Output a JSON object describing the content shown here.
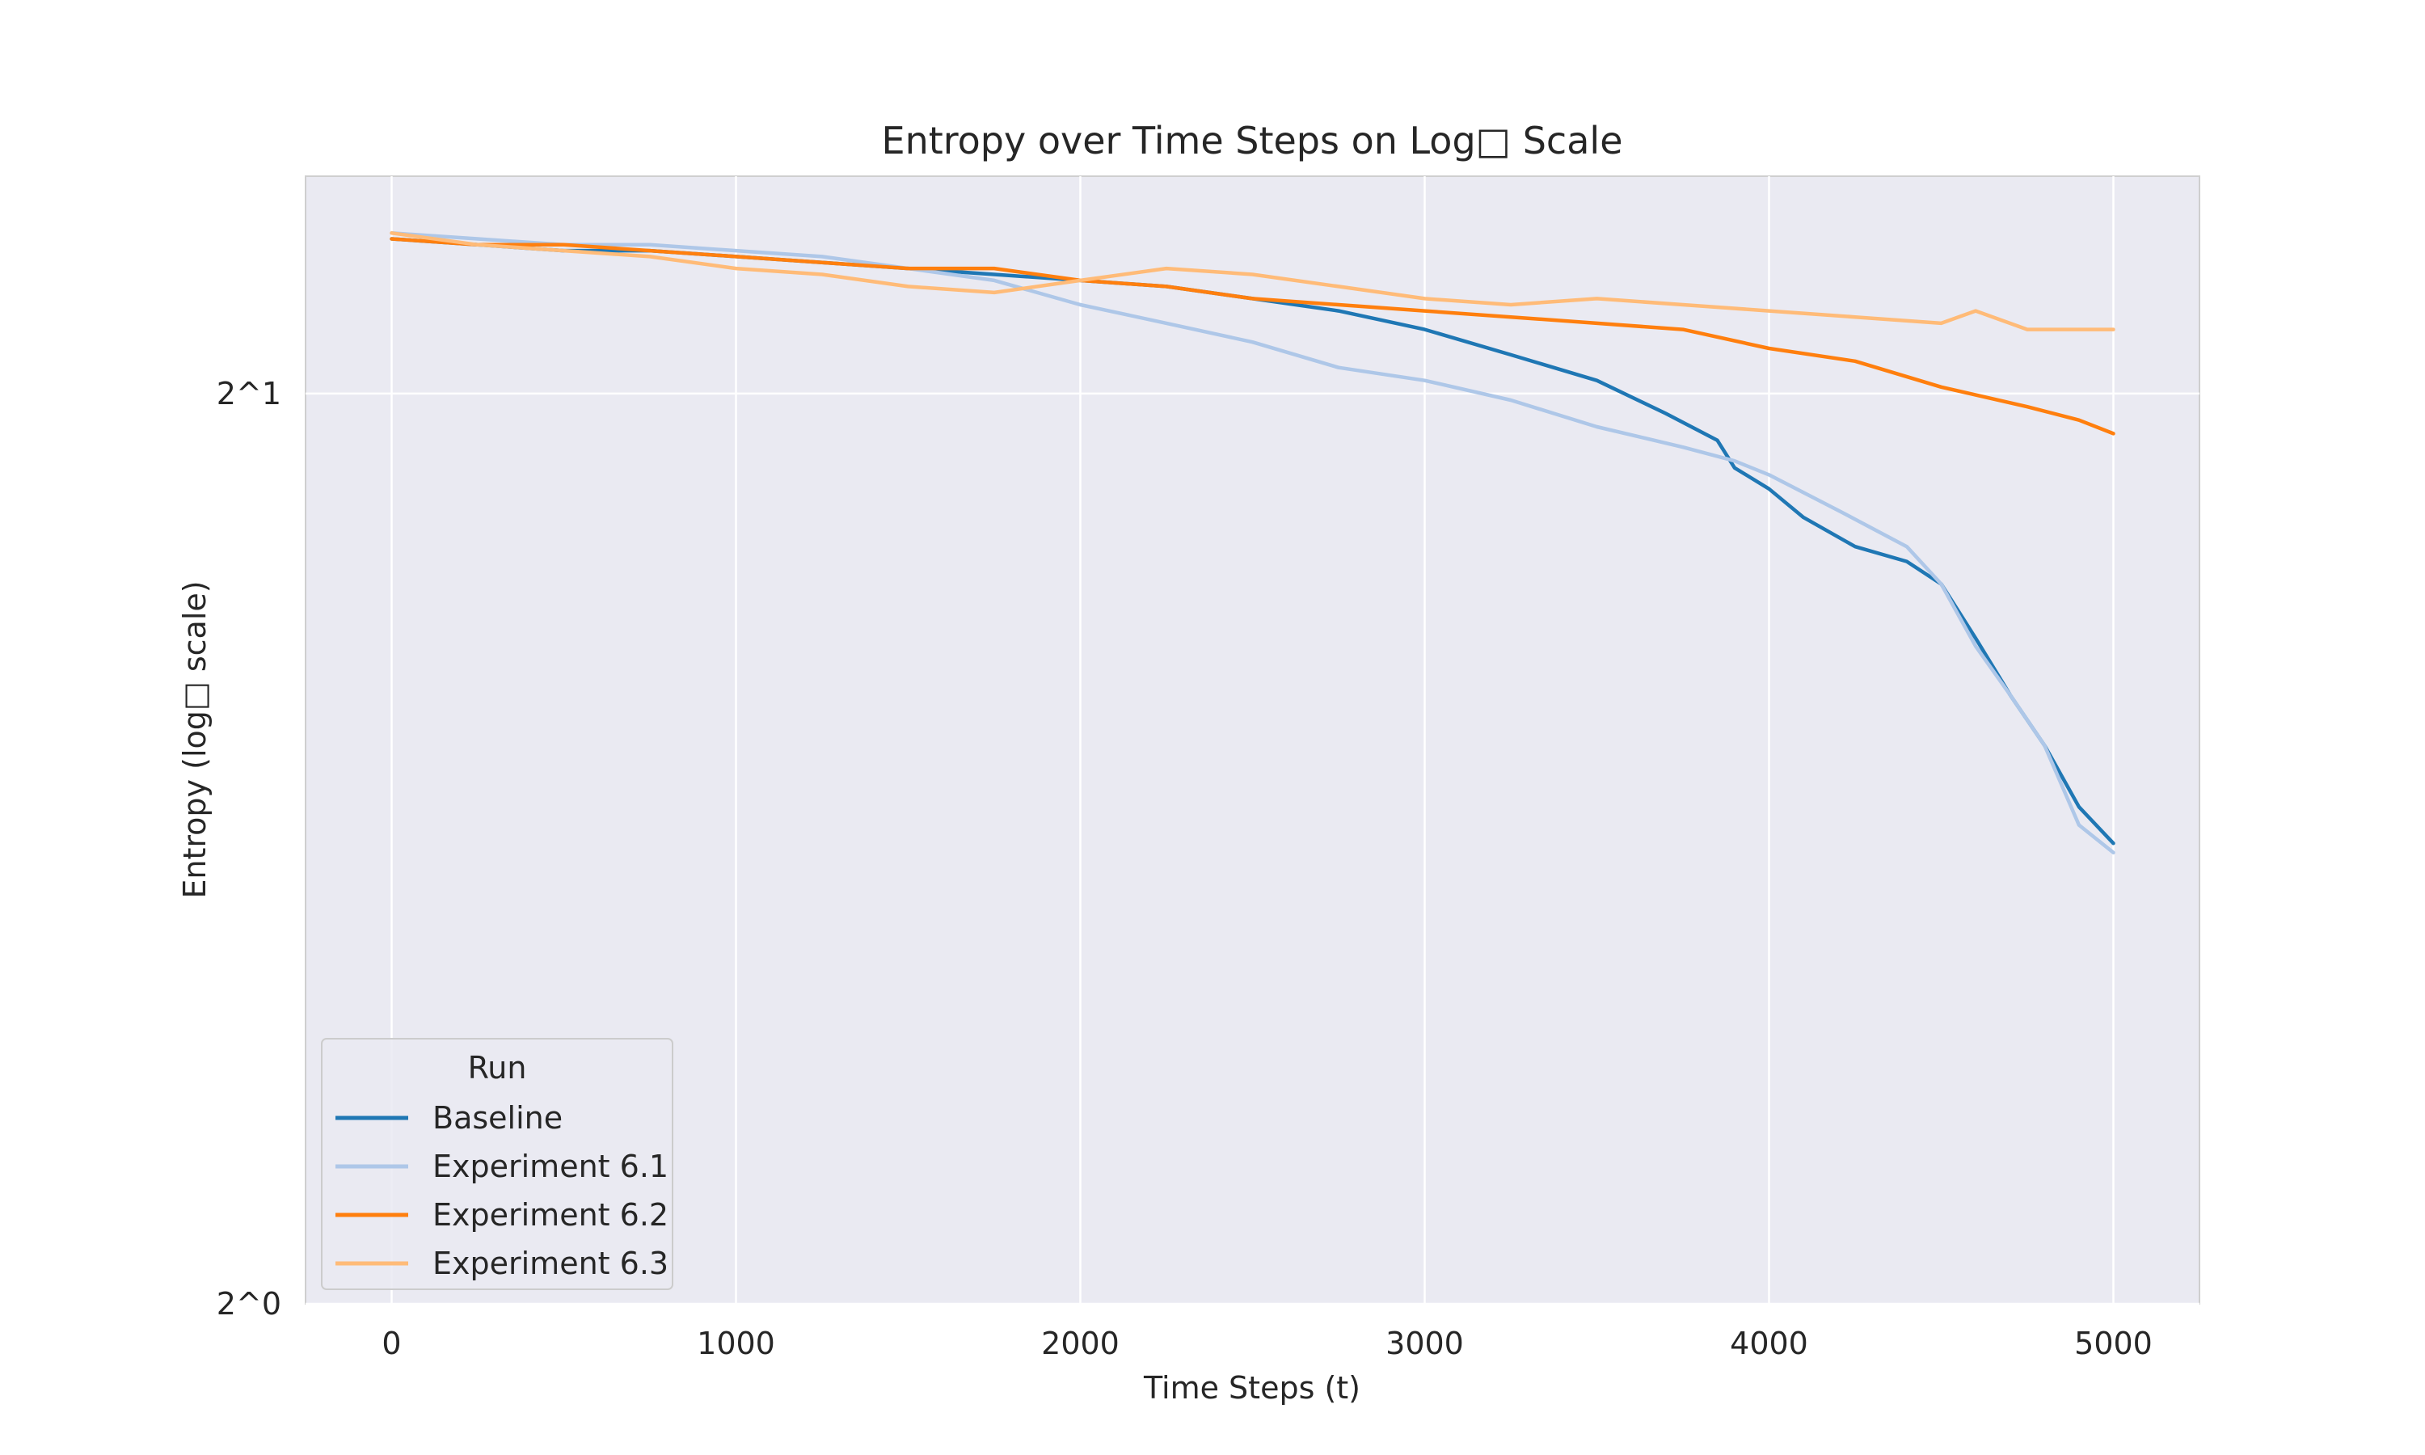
{
  "chart_data": {
    "type": "line",
    "title": "Entropy over Time Steps on Log□ Scale",
    "xlabel": "Time Steps (t)",
    "ylabel": "Entropy (log□ scale)",
    "xlim": [
      -250,
      5250
    ],
    "ylim": [
      1.0,
      2.36
    ],
    "yscale": "log2",
    "grid": true,
    "x_ticks": [
      0,
      1000,
      2000,
      3000,
      4000,
      5000
    ],
    "x_tick_labels": [
      "0",
      "1000",
      "2000",
      "3000",
      "4000",
      "5000"
    ],
    "y_ticks": [
      1,
      2
    ],
    "y_tick_labels": [
      "2^0",
      "2^1"
    ],
    "legend": {
      "title": "Run",
      "position": "lower-left"
    },
    "colors": {
      "plot_bg": "#eaeaf2",
      "grid": "#ffffff",
      "Baseline": "#1f77b4",
      "Experiment 6.1": "#aec7e8",
      "Experiment 6.2": "#ff7f0e",
      "Experiment 6.3": "#ffbb78"
    },
    "series": [
      {
        "name": "Baseline",
        "color": "#1f77b4",
        "x": [
          0,
          250,
          500,
          750,
          1000,
          1250,
          1500,
          1750,
          2000,
          2250,
          2500,
          2750,
          3000,
          3250,
          3500,
          3700,
          3850,
          3900,
          4000,
          4100,
          4250,
          4400,
          4500,
          4600,
          4700,
          4800,
          4900,
          5000
        ],
        "y": [
          2.25,
          2.24,
          2.23,
          2.23,
          2.22,
          2.21,
          2.2,
          2.19,
          2.18,
          2.17,
          2.15,
          2.13,
          2.1,
          2.06,
          2.02,
          1.97,
          1.93,
          1.89,
          1.86,
          1.82,
          1.78,
          1.76,
          1.73,
          1.66,
          1.59,
          1.53,
          1.46,
          1.42
        ]
      },
      {
        "name": "Experiment 6.1",
        "color": "#aec7e8",
        "x": [
          0,
          250,
          500,
          750,
          1000,
          1250,
          1500,
          1750,
          2000,
          2250,
          2500,
          2750,
          3000,
          3250,
          3500,
          3750,
          3900,
          4000,
          4200,
          4400,
          4500,
          4600,
          4700,
          4800,
          4900,
          5000
        ],
        "y": [
          2.26,
          2.25,
          2.24,
          2.24,
          2.23,
          2.22,
          2.2,
          2.18,
          2.14,
          2.11,
          2.08,
          2.04,
          2.02,
          1.99,
          1.95,
          1.92,
          1.9,
          1.88,
          1.83,
          1.78,
          1.73,
          1.65,
          1.59,
          1.53,
          1.44,
          1.41
        ]
      },
      {
        "name": "Experiment 6.2",
        "color": "#ff7f0e",
        "x": [
          0,
          250,
          500,
          750,
          1000,
          1250,
          1500,
          1750,
          2000,
          2250,
          2500,
          2750,
          3000,
          3250,
          3500,
          3750,
          4000,
          4250,
          4500,
          4750,
          4900,
          5000
        ],
        "y": [
          2.25,
          2.24,
          2.24,
          2.23,
          2.22,
          2.21,
          2.2,
          2.2,
          2.18,
          2.17,
          2.15,
          2.14,
          2.13,
          2.12,
          2.11,
          2.1,
          2.07,
          2.05,
          2.01,
          1.98,
          1.96,
          1.94
        ]
      },
      {
        "name": "Experiment 6.3",
        "color": "#ffbb78",
        "x": [
          0,
          250,
          500,
          750,
          1000,
          1250,
          1500,
          1750,
          2000,
          2250,
          2500,
          2750,
          3000,
          3250,
          3500,
          3750,
          4000,
          4250,
          4500,
          4600,
          4750,
          5000
        ],
        "y": [
          2.26,
          2.24,
          2.23,
          2.22,
          2.2,
          2.19,
          2.17,
          2.16,
          2.18,
          2.2,
          2.19,
          2.17,
          2.15,
          2.14,
          2.15,
          2.14,
          2.13,
          2.12,
          2.11,
          2.13,
          2.1,
          2.1
        ]
      }
    ]
  }
}
